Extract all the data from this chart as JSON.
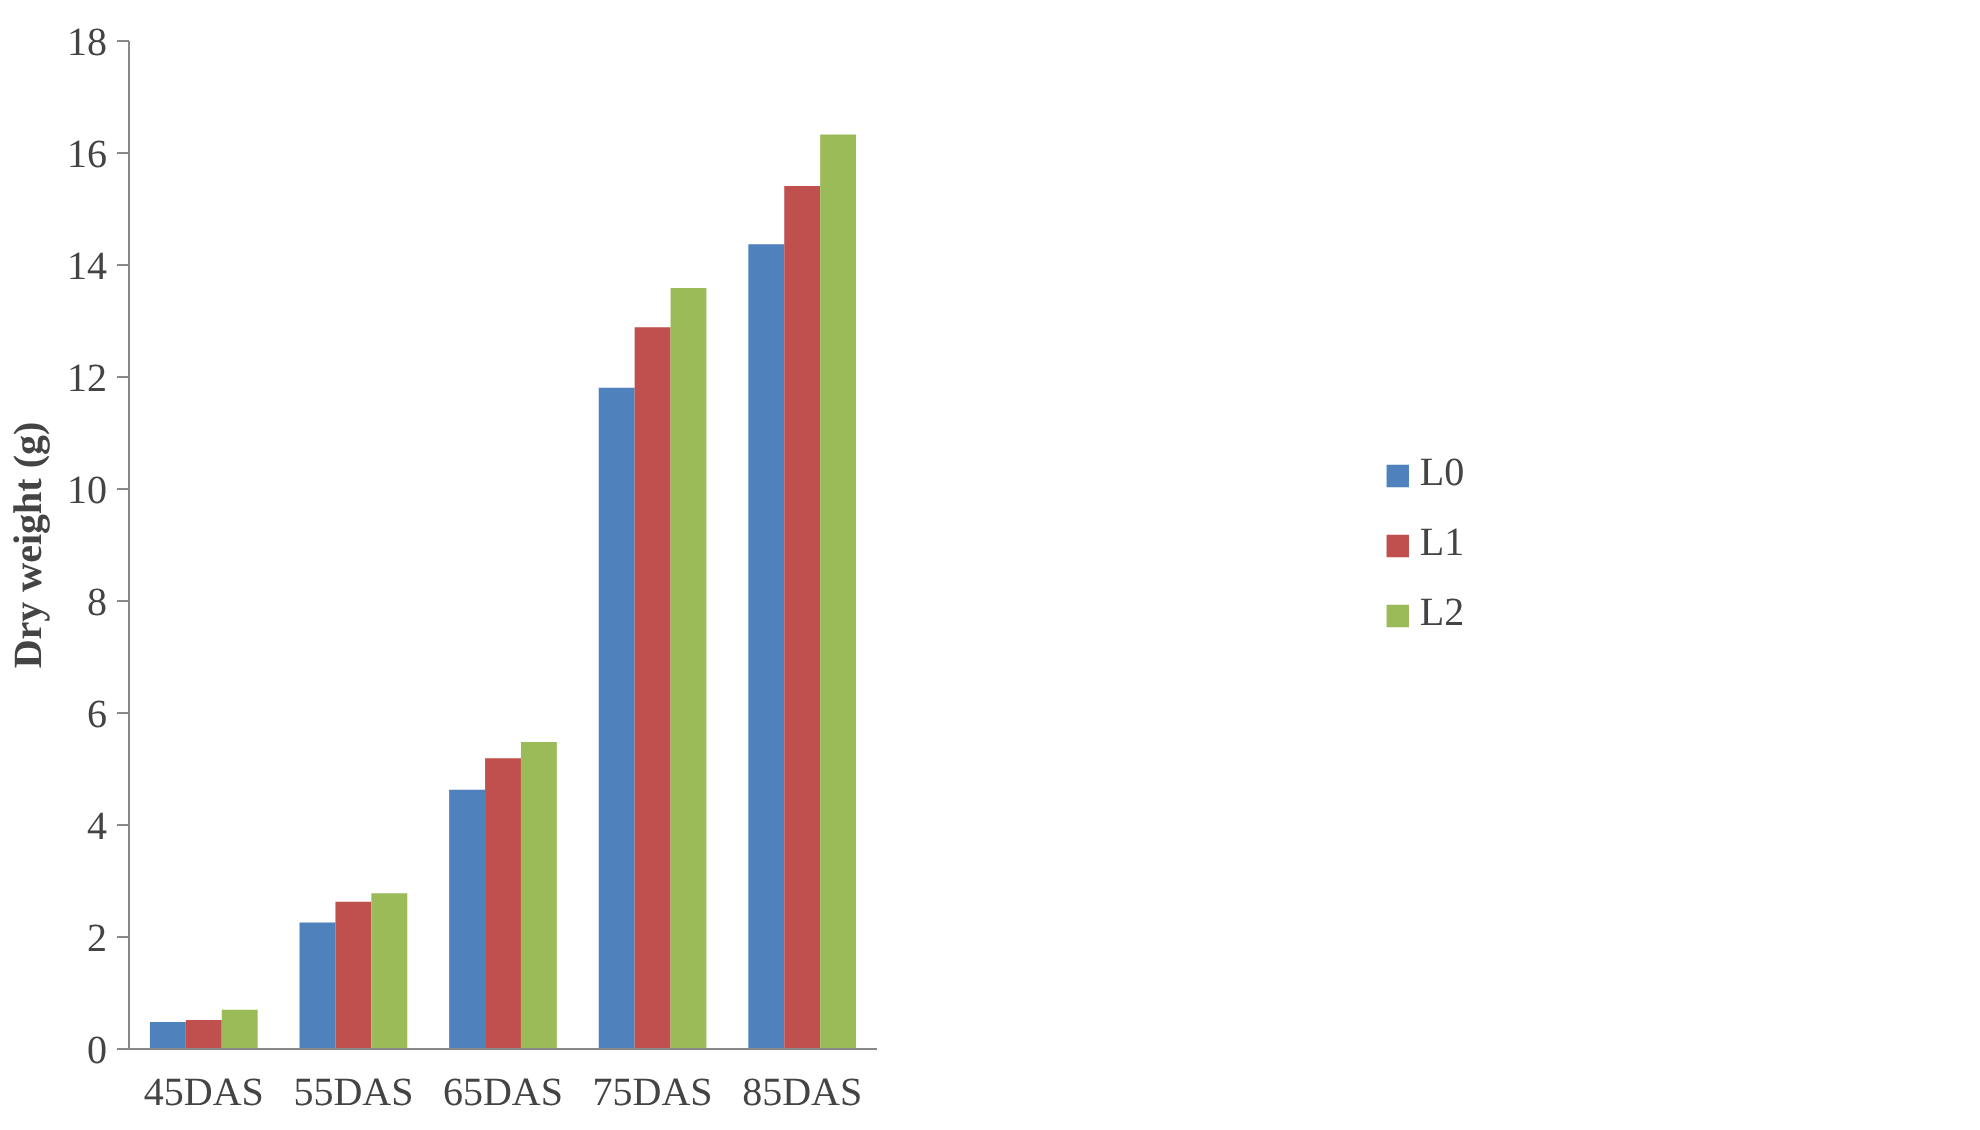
{
  "chart_data": {
    "type": "bar",
    "ylabel": "Dry weight (g)",
    "categories": [
      "45DAS",
      "55DAS",
      "65DAS",
      "75DAS",
      "85DAS"
    ],
    "series": [
      {
        "name": "L0",
        "color": "#4f81bd",
        "values": [
          0.48,
          2.26,
          4.63,
          11.81,
          14.37
        ]
      },
      {
        "name": "L1",
        "color": "#c0504d",
        "values": [
          0.52,
          2.63,
          5.19,
          12.89,
          15.41
        ]
      },
      {
        "name": "L2",
        "color": "#9bbb59",
        "values": [
          0.7,
          2.78,
          5.48,
          13.59,
          16.33
        ]
      }
    ],
    "ylim": [
      0,
      18
    ],
    "yticks": [
      0,
      2,
      4,
      6,
      8,
      10,
      12,
      14,
      16,
      18
    ],
    "grid": false,
    "legend": "right"
  }
}
